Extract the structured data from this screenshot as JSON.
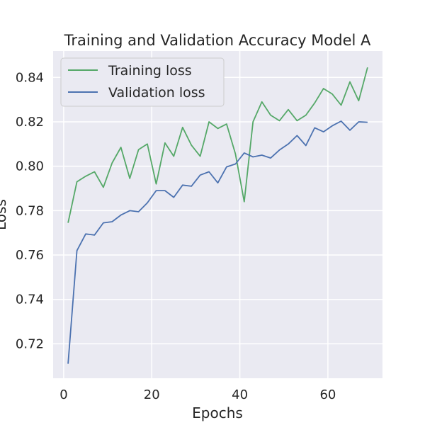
{
  "chart_data": {
    "type": "line",
    "title": "Training and Validation Accuracy Model A",
    "xlabel": "Epochs",
    "ylabel": "Loss",
    "xlim": [
      -2.4,
      72.4
    ],
    "ylim": [
      0.7045,
      0.8519
    ],
    "x_ticks": [
      0,
      20,
      40,
      60
    ],
    "y_ticks": [
      0.72,
      0.74,
      0.76,
      0.78,
      0.8,
      0.82,
      0.84
    ],
    "grid": true,
    "legend_position": "upper-left",
    "x": [
      1,
      3,
      5,
      7,
      9,
      11,
      13,
      15,
      17,
      19,
      21,
      23,
      25,
      27,
      29,
      31,
      33,
      35,
      37,
      39,
      41,
      43,
      45,
      47,
      49,
      51,
      53,
      55,
      57,
      59,
      61,
      63,
      65,
      67,
      69
    ],
    "series": [
      {
        "name": "Training loss",
        "color": "#55a868",
        "values": [
          0.7745,
          0.793,
          0.7955,
          0.7975,
          0.7905,
          0.8015,
          0.8085,
          0.7945,
          0.8075,
          0.81,
          0.792,
          0.8105,
          0.8045,
          0.8175,
          0.8095,
          0.8045,
          0.82,
          0.817,
          0.819,
          0.8055,
          0.784,
          0.82,
          0.829,
          0.823,
          0.8205,
          0.8255,
          0.8205,
          0.823,
          0.8285,
          0.835,
          0.8325,
          0.8275,
          0.838,
          0.8295,
          0.8445
        ]
      },
      {
        "name": "Validation loss",
        "color": "#4c72b0",
        "values": [
          0.711,
          0.762,
          0.7695,
          0.769,
          0.7745,
          0.775,
          0.778,
          0.78,
          0.7795,
          0.7835,
          0.789,
          0.789,
          0.786,
          0.7915,
          0.791,
          0.796,
          0.7975,
          0.7925,
          0.7997,
          0.801,
          0.806,
          0.8042,
          0.805,
          0.8037,
          0.8073,
          0.81,
          0.8138,
          0.8093,
          0.8173,
          0.8155,
          0.8182,
          0.8203,
          0.8162,
          0.82,
          0.8198
        ]
      }
    ]
  }
}
